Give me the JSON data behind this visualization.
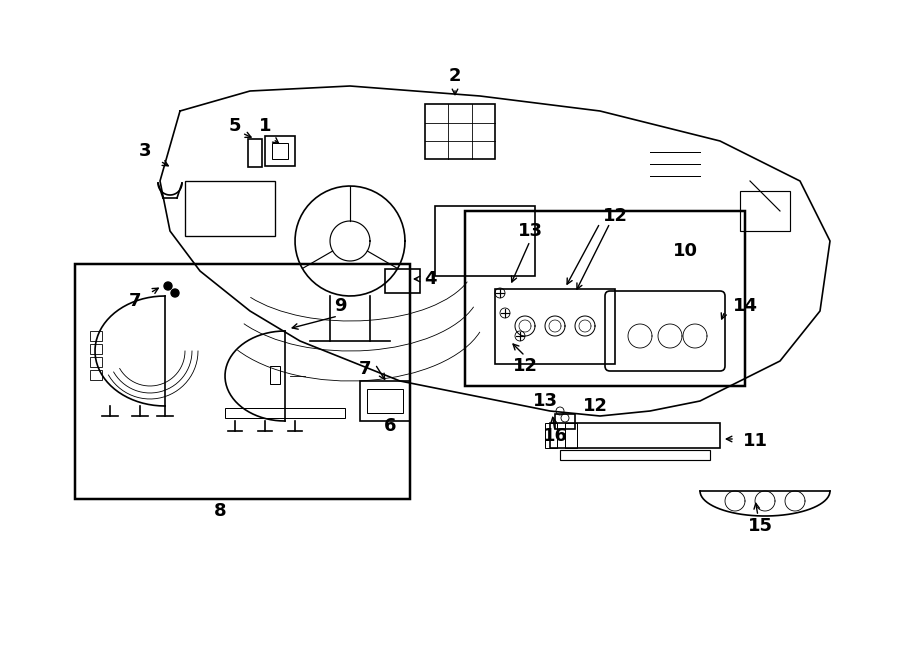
{
  "bg_color": "#ffffff",
  "line_color": "#000000",
  "label_fontsize": 13,
  "fig_width": 9.0,
  "fig_height": 6.61
}
